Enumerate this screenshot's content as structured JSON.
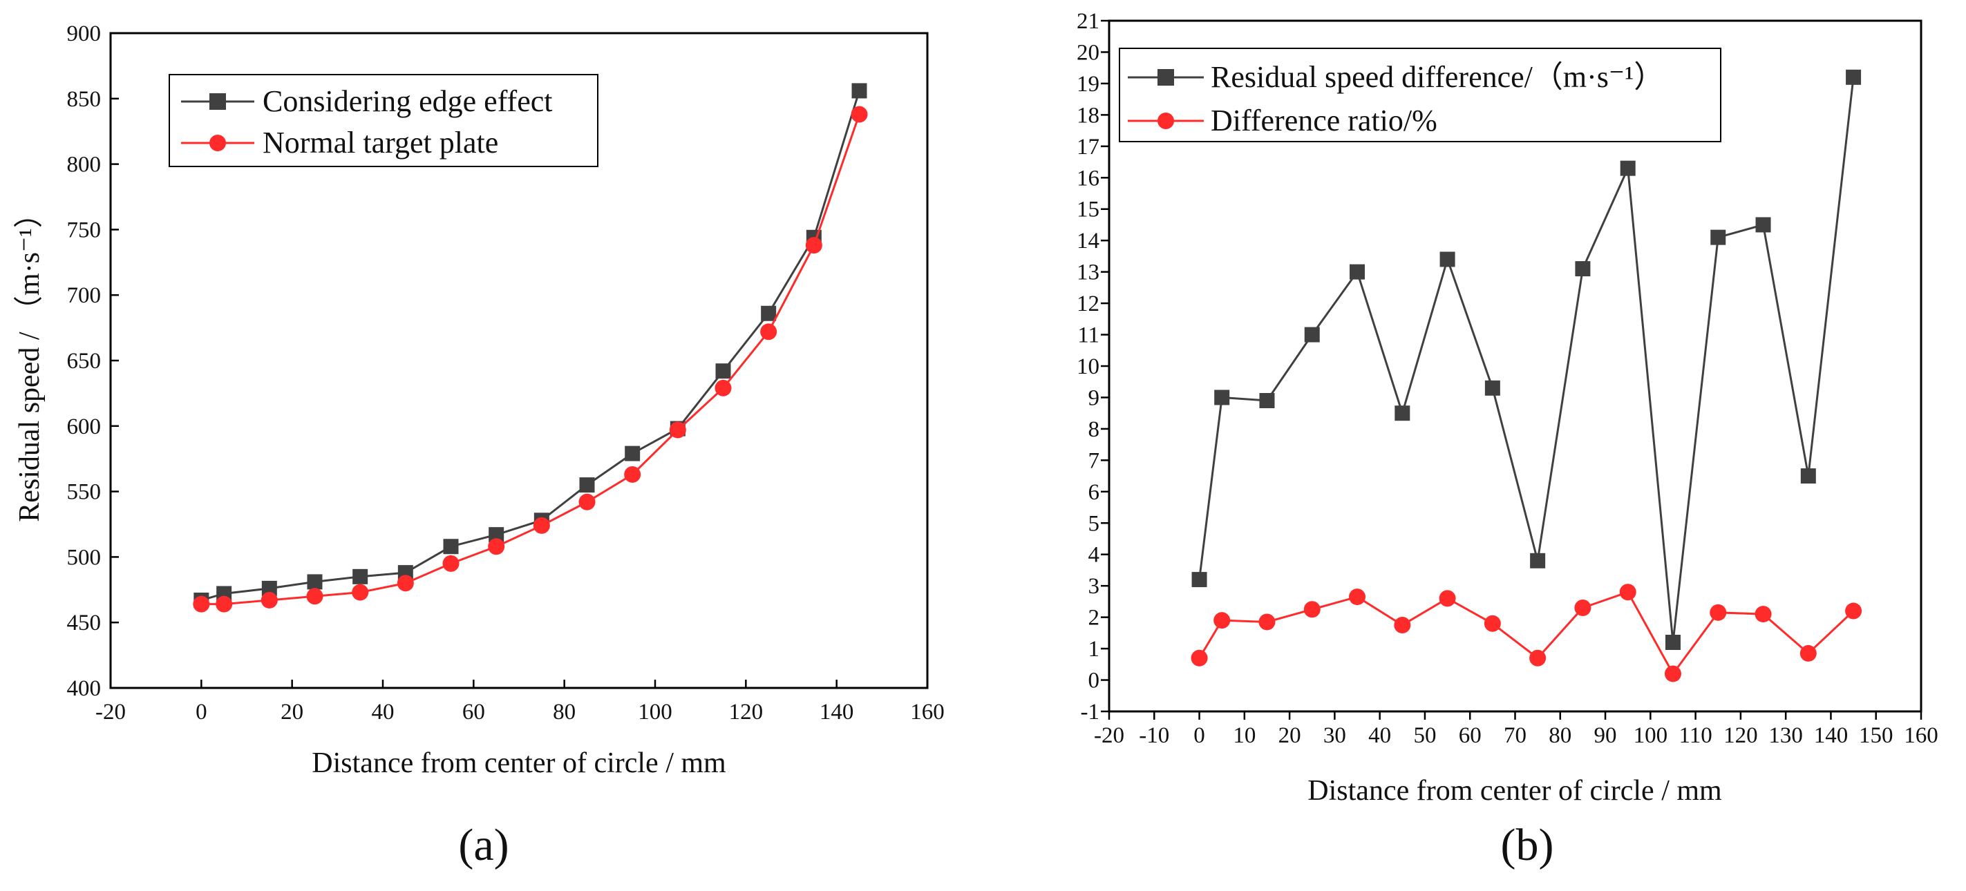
{
  "colors": {
    "series_black": "#404040",
    "series_red": "#ff2a2a",
    "axis": "#000000"
  },
  "chart_data": [
    {
      "type": "line",
      "panel": "a",
      "caption": "(a)",
      "title": "",
      "xlabel": "Distance from center of circle / mm",
      "ylabel": "Residual speed / （m·s⁻¹）",
      "xlim": [
        -20,
        160
      ],
      "ylim": [
        400,
        900
      ],
      "xticks": [
        -20,
        0,
        20,
        40,
        60,
        80,
        100,
        120,
        140,
        160
      ],
      "yticks": [
        400,
        450,
        500,
        550,
        600,
        650,
        700,
        750,
        800,
        850,
        900
      ],
      "legend_position": "top-left",
      "x": [
        0,
        5,
        15,
        25,
        35,
        45,
        55,
        65,
        75,
        85,
        95,
        105,
        115,
        125,
        135,
        145
      ],
      "series": [
        {
          "name": "Considering edge effect",
          "marker": "square",
          "color": "#404040",
          "values": [
            467,
            472,
            476,
            481,
            485,
            488,
            508,
            517,
            528,
            555,
            579,
            598,
            642,
            686,
            744,
            856
          ]
        },
        {
          "name": "Normal target plate",
          "marker": "circle",
          "color": "#ff2a2a",
          "values": [
            464,
            464,
            467,
            470,
            473,
            480,
            495,
            508,
            524,
            542,
            563,
            597,
            629,
            672,
            738,
            838
          ]
        }
      ]
    },
    {
      "type": "line",
      "panel": "b",
      "caption": "(b)",
      "title": "",
      "xlabel": "Distance from center of circle / mm",
      "ylabel": "",
      "xlim": [
        -20,
        160
      ],
      "ylim": [
        -1,
        21
      ],
      "xticks": [
        -20,
        -10,
        0,
        10,
        20,
        30,
        40,
        50,
        60,
        70,
        80,
        90,
        100,
        110,
        120,
        130,
        140,
        150,
        160
      ],
      "yticks": [
        -1,
        0,
        1,
        2,
        3,
        4,
        5,
        6,
        7,
        8,
        9,
        10,
        11,
        12,
        13,
        14,
        15,
        16,
        17,
        18,
        19,
        20,
        21
      ],
      "legend_position": "top-left",
      "x": [
        0,
        5,
        15,
        25,
        35,
        45,
        55,
        65,
        75,
        85,
        95,
        105,
        115,
        125,
        135,
        145
      ],
      "series": [
        {
          "name": "Residual speed difference/（m·s⁻¹）",
          "marker": "square",
          "color": "#404040",
          "values": [
            3.2,
            9.0,
            8.9,
            11.0,
            13.0,
            8.5,
            13.4,
            9.3,
            3.8,
            13.1,
            16.3,
            1.2,
            14.1,
            14.5,
            6.5,
            19.2
          ]
        },
        {
          "name": "Difference ratio/%",
          "marker": "circle",
          "color": "#ff2a2a",
          "values": [
            0.7,
            1.9,
            1.85,
            2.25,
            2.65,
            1.75,
            2.6,
            1.8,
            0.7,
            2.3,
            2.8,
            0.2,
            2.15,
            2.1,
            0.85,
            2.2
          ]
        }
      ]
    }
  ]
}
